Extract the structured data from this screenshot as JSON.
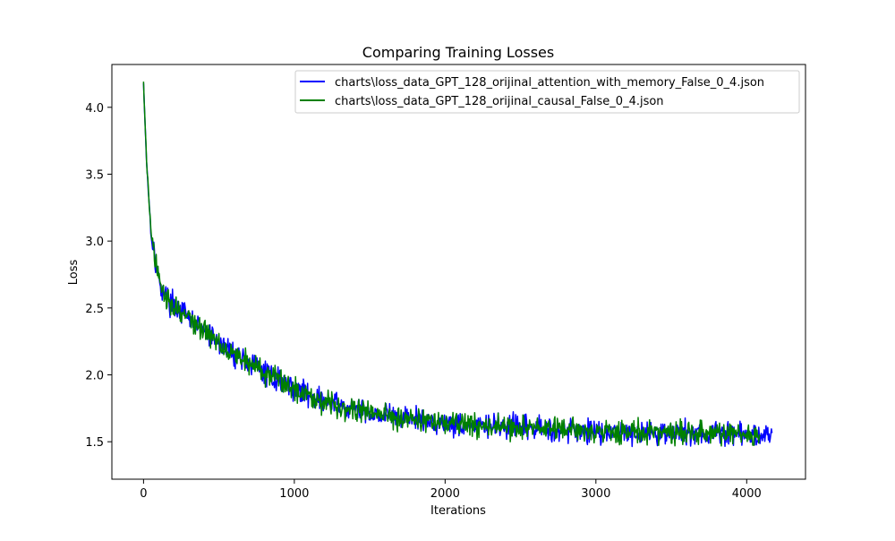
{
  "chart_data": {
    "type": "line",
    "title": "Comparing Training Losses",
    "xlabel": "Iterations",
    "ylabel": "Loss",
    "xlim": [
      -210,
      4390
    ],
    "ylim": [
      1.22,
      4.32
    ],
    "xticks": [
      0,
      1000,
      2000,
      3000,
      4000
    ],
    "xtick_labels": [
      "0",
      "1000",
      "2000",
      "3000",
      "4000"
    ],
    "yticks": [
      1.5,
      2.0,
      2.5,
      3.0,
      3.5,
      4.0
    ],
    "ytick_labels": [
      "1.5",
      "2.0",
      "2.5",
      "3.0",
      "3.5",
      "4.0"
    ],
    "grid": false,
    "legend_position": "top-right",
    "series": [
      {
        "name": "charts\\loss_data_GPT_128_orijinal_attention_with_memory_False_0_4.json",
        "color": "#0000ff",
        "x": [
          0,
          20,
          50,
          100,
          150,
          200,
          300,
          400,
          500,
          600,
          700,
          800,
          900,
          1000,
          1200,
          1400,
          1600,
          1800,
          2000,
          2200,
          2400,
          2600,
          2800,
          3000,
          3200,
          3400,
          3600,
          3800,
          4000,
          4100,
          4170
        ],
        "values": [
          4.18,
          3.6,
          3.05,
          2.7,
          2.58,
          2.52,
          2.42,
          2.33,
          2.24,
          2.16,
          2.09,
          2.02,
          1.96,
          1.9,
          1.8,
          1.74,
          1.7,
          1.67,
          1.64,
          1.62,
          1.61,
          1.6,
          1.59,
          1.58,
          1.575,
          1.57,
          1.565,
          1.56,
          1.555,
          1.55,
          1.55
        ]
      },
      {
        "name": "charts\\loss_data_GPT_128_orijinal_causal_False_0_4.json",
        "color": "#008000",
        "x": [
          0,
          20,
          50,
          100,
          150,
          200,
          300,
          400,
          500,
          600,
          700,
          800,
          900,
          1000,
          1200,
          1400,
          1600,
          1800,
          2000,
          2200,
          2400,
          2600,
          2800,
          3000,
          3200,
          3400,
          3600,
          3800,
          4000,
          4090
        ],
        "values": [
          4.18,
          3.6,
          3.05,
          2.7,
          2.58,
          2.52,
          2.42,
          2.33,
          2.24,
          2.16,
          2.09,
          2.02,
          1.96,
          1.9,
          1.8,
          1.74,
          1.7,
          1.67,
          1.64,
          1.62,
          1.61,
          1.6,
          1.59,
          1.58,
          1.575,
          1.57,
          1.565,
          1.56,
          1.555,
          1.55
        ]
      }
    ]
  }
}
